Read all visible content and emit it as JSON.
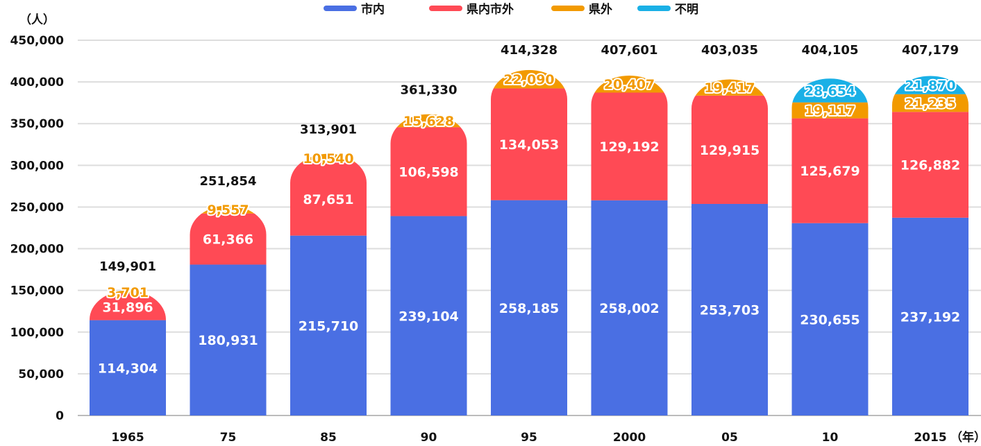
{
  "chart_data": {
    "type": "bar",
    "stacked": true,
    "title": "",
    "ylabel": "（人）",
    "xlabel": "（年）",
    "ylim": [
      0,
      450000
    ],
    "yticks": [
      0,
      50000,
      100000,
      150000,
      200000,
      250000,
      300000,
      350000,
      400000,
      450000
    ],
    "ytick_labels": [
      "0",
      "50,000",
      "100,000",
      "150,000",
      "200,000",
      "250,000",
      "300,000",
      "350,000",
      "400,000",
      "450,000"
    ],
    "grid": true,
    "legend_position": "top-center",
    "categories": [
      "1965",
      "75",
      "85",
      "90",
      "95",
      "2000",
      "05",
      "10",
      "2015"
    ],
    "series": [
      {
        "name": "市内",
        "color": "#4A6FE3",
        "values": [
          114304,
          180931,
          215710,
          239104,
          258185,
          258002,
          253703,
          230655,
          237192
        ],
        "labels": [
          "114,304",
          "180,931",
          "215,710",
          "239,104",
          "258,185",
          "258,002",
          "253,703",
          "230,655",
          "237,192"
        ]
      },
      {
        "name": "県内市外",
        "color": "#FF4A55",
        "values": [
          31896,
          61366,
          87651,
          106598,
          134053,
          129192,
          129915,
          125679,
          126882
        ],
        "labels": [
          "31,896",
          "61,366",
          "87,651",
          "106,598",
          "134,053",
          "129,192",
          "129,915",
          "125,679",
          "126,882"
        ]
      },
      {
        "name": "県外",
        "color": "#F29A00",
        "values": [
          3701,
          9557,
          10540,
          15628,
          22090,
          20407,
          19417,
          19117,
          21235
        ],
        "labels": [
          "3,701",
          "9,557",
          "10,540",
          "15,628",
          "22,090",
          "20,407",
          "19,417",
          "19,117",
          "21,235"
        ]
      },
      {
        "name": "不明",
        "color": "#1AB0E6",
        "values": [
          null,
          null,
          null,
          null,
          null,
          null,
          null,
          28654,
          21870
        ],
        "labels": [
          null,
          null,
          null,
          null,
          null,
          null,
          null,
          "28,654",
          "21,870"
        ]
      }
    ],
    "totals": [
      149901,
      251854,
      313901,
      361330,
      414328,
      407601,
      403035,
      404105,
      407179
    ],
    "total_labels": [
      "149,901",
      "251,854",
      "313,901",
      "361,330",
      "414,328",
      "407,601",
      "403,035",
      "404,105",
      "407,179"
    ]
  }
}
